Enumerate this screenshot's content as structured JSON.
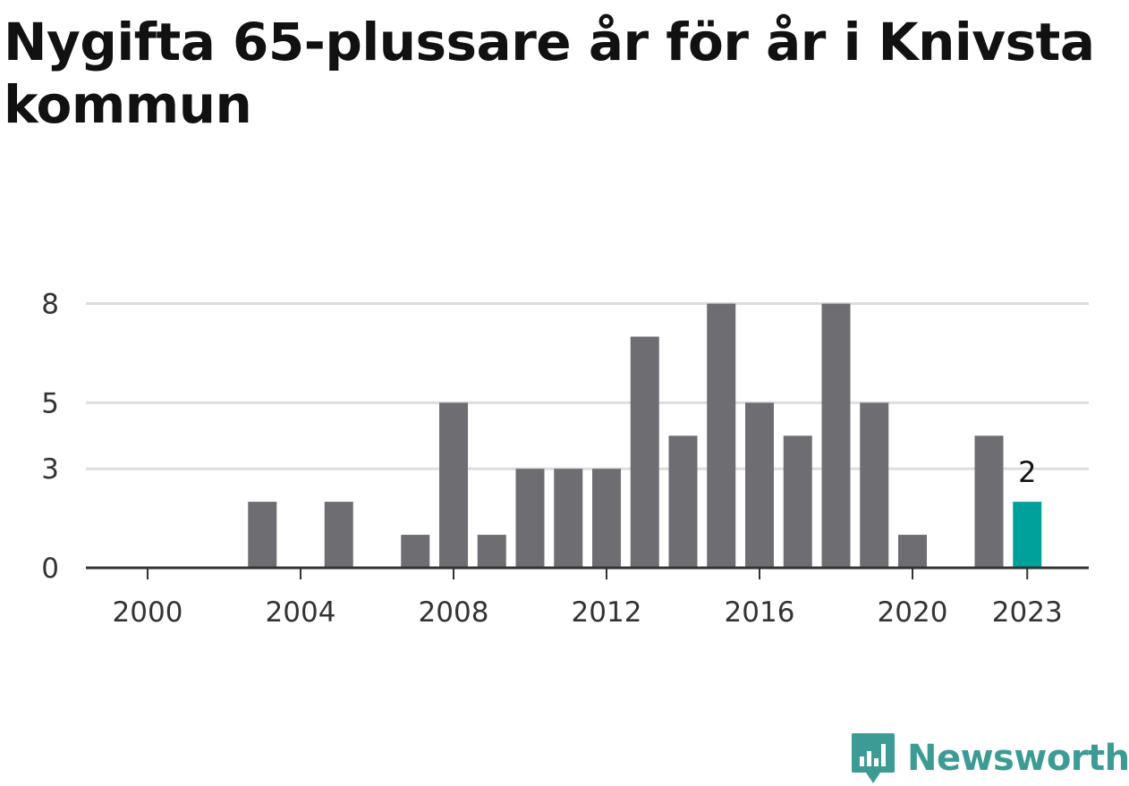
{
  "header": {
    "title": "Nygifta 65-plussare år för år i Knivsta kommun"
  },
  "brand": {
    "name": "Newsworthy",
    "icon": "newsworthy-logo-icon",
    "color": "#3d9b95"
  },
  "colors": {
    "bar": "#6e6d72",
    "highlight": "#00a19a",
    "grid": "#dddddd",
    "axis": "#333333"
  },
  "chart_data": {
    "type": "bar",
    "title": "Nygifta 65-plussare år för år i Knivsta kommun",
    "xlabel": "",
    "ylabel": "",
    "x": [
      2000,
      2001,
      2002,
      2003,
      2004,
      2005,
      2006,
      2007,
      2008,
      2009,
      2010,
      2011,
      2012,
      2013,
      2014,
      2015,
      2016,
      2017,
      2018,
      2019,
      2020,
      2021,
      2022,
      2023
    ],
    "values": [
      0,
      0,
      0,
      2,
      0,
      2,
      0,
      1,
      5,
      1,
      3,
      3,
      3,
      7,
      4,
      8,
      5,
      4,
      8,
      5,
      1,
      0,
      4,
      2
    ],
    "x_tick_labels": [
      "2000",
      "2004",
      "2008",
      "2012",
      "2016",
      "2020",
      "2023"
    ],
    "y_tick_labels": [
      "0",
      "3",
      "5",
      "8"
    ],
    "ylim": [
      0,
      8.8
    ],
    "grid": true,
    "highlight": {
      "x": 2023,
      "value": 2,
      "label": "2"
    }
  }
}
